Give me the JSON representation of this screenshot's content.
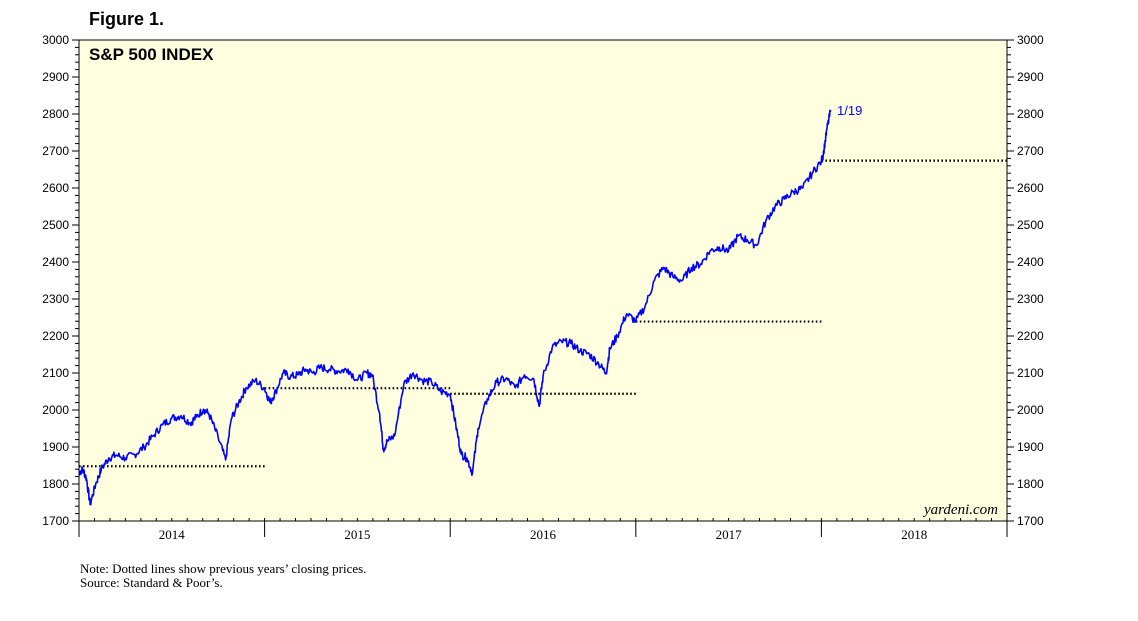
{
  "figure_label": "Figure 1.",
  "chart_data": {
    "type": "line",
    "title": "S&P 500 INDEX",
    "watermark": "yardeni.com",
    "ylim": [
      1700,
      3000
    ],
    "y_ticks": [
      1700,
      1800,
      1900,
      2000,
      2100,
      2200,
      2300,
      2400,
      2500,
      2600,
      2700,
      2800,
      2900,
      3000
    ],
    "x_range": [
      2014.0,
      2019.0
    ],
    "x_ticks": [
      "2014",
      "2015",
      "2016",
      "2017",
      "2018"
    ],
    "grid": false,
    "background_color": "#ffffe0",
    "line_color": "#0000ff",
    "end_label": "1/19",
    "series": [
      {
        "values_x": [
          2014.0,
          2014.02,
          2014.04,
          2014.06,
          2014.09,
          2014.12,
          2014.16,
          2014.2,
          2014.25,
          2014.3,
          2014.35,
          2014.4,
          2014.45,
          2014.5,
          2014.55,
          2014.6,
          2014.63,
          2014.67,
          2014.7,
          2014.75,
          2014.79,
          2014.82,
          2014.86,
          2014.9,
          2014.95,
          2015.0,
          2015.03,
          2015.06,
          2015.1,
          2015.14,
          2015.18,
          2015.22,
          2015.26,
          2015.3,
          2015.35,
          2015.4,
          2015.45,
          2015.5,
          2015.55,
          2015.58,
          2015.62,
          2015.64,
          2015.66,
          2015.7,
          2015.75,
          2015.8,
          2015.85,
          2015.9,
          2015.95,
          2016.0,
          2016.03,
          2016.06,
          2016.09,
          2016.12,
          2016.15,
          2016.2,
          2016.25,
          2016.3,
          2016.35,
          2016.4,
          2016.45,
          2016.48,
          2016.5,
          2016.55,
          2016.6,
          2016.65,
          2016.7,
          2016.75,
          2016.8,
          2016.84,
          2016.86,
          2016.9,
          2016.95,
          2017.0,
          2017.05,
          2017.1,
          2017.15,
          2017.2,
          2017.25,
          2017.3,
          2017.35,
          2017.4,
          2017.45,
          2017.5,
          2017.55,
          2017.6,
          2017.65,
          2017.7,
          2017.75,
          2017.8,
          2017.85,
          2017.9,
          2017.95,
          2018.0,
          2018.01,
          2018.03,
          2018.05
        ],
        "values_y": [
          1831,
          1840,
          1815,
          1745,
          1800,
          1840,
          1870,
          1878,
          1870,
          1880,
          1900,
          1930,
          1960,
          1978,
          1985,
          1965,
          1980,
          2002,
          1990,
          1925,
          1865,
          1975,
          2020,
          2060,
          2080,
          2058,
          2020,
          2050,
          2100,
          2090,
          2095,
          2110,
          2100,
          2115,
          2110,
          2105,
          2110,
          2080,
          2100,
          2095,
          1990,
          1893,
          1915,
          1930,
          2070,
          2100,
          2080,
          2075,
          2050,
          2043,
          1960,
          1880,
          1870,
          1830,
          1950,
          2030,
          2075,
          2085,
          2060,
          2095,
          2085,
          2010,
          2090,
          2170,
          2185,
          2180,
          2160,
          2150,
          2125,
          2100,
          2165,
          2200,
          2260,
          2240,
          2280,
          2350,
          2385,
          2360,
          2350,
          2385,
          2395,
          2430,
          2440,
          2430,
          2470,
          2460,
          2445,
          2510,
          2550,
          2570,
          2590,
          2600,
          2640,
          2673,
          2690,
          2760,
          2810
        ]
      }
    ],
    "reference_lines": [
      {
        "value": 1848,
        "from": 2014.0,
        "to": 2015.0
      },
      {
        "value": 2059,
        "from": 2015.0,
        "to": 2016.0
      },
      {
        "value": 2044,
        "from": 2016.0,
        "to": 2017.0
      },
      {
        "value": 2239,
        "from": 2017.0,
        "to": 2018.0
      },
      {
        "value": 2674,
        "from": 2018.0,
        "to": 2019.0
      }
    ]
  },
  "notes": {
    "line1": "Note: Dotted lines show previous years’ closing prices.",
    "line2": "Source: Standard & Poor’s."
  }
}
